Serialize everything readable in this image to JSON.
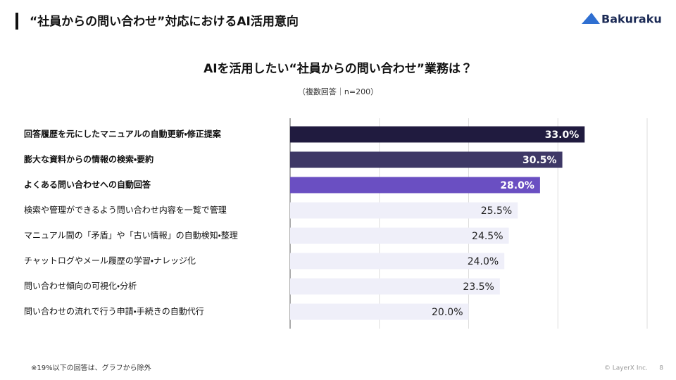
{
  "header": {
    "title": "“社員からの問い合わせ”対応におけるAI活用意向",
    "logo": "Bakuraku"
  },
  "chart_data": {
    "type": "bar",
    "orientation": "horizontal",
    "title": "AIを活用したい“社員からの問い合わせ”業務は？",
    "subtitle": "（複数回答｜n=200）",
    "categories": [
      "回答履歴を元にしたマニュアルの自動更新・修正提案",
      "膨大な資料からの情報の検索・要約",
      "よくある問い合わせへの自動回答",
      "検索や管理ができるよう問い合わせ内容を一覧で管理",
      "マニュアル間の「矛盾」や「古い情報」の自動検知・整理",
      "チャットログやメール履歴の学習・ナレッジ化",
      "問い合わせ傾向の可視化・分析",
      "問い合わせの流れで行う申請・手続きの自動代行"
    ],
    "values": [
      33.0,
      30.5,
      28.0,
      25.5,
      24.5,
      24.0,
      23.5,
      20.0
    ],
    "value_labels": [
      "33.0%",
      "30.5%",
      "28.0%",
      "25.5%",
      "24.5%",
      "24.0%",
      "23.5%",
      "20.0%"
    ],
    "colors": [
      "#201b3f",
      "#3e3866",
      "#6a4fc2",
      "#efeff9",
      "#efeff9",
      "#efeff9",
      "#efeff9",
      "#efeff9"
    ],
    "xlim": [
      0,
      40
    ],
    "xticks": [
      0,
      10,
      20,
      30,
      40
    ],
    "grid": true
  },
  "footer": {
    "note": "※19%以下の回答は、グラフから除外",
    "copyright": "© LayerX Inc.",
    "page": "8"
  }
}
